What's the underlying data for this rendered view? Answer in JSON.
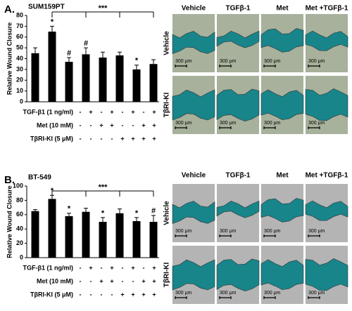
{
  "chart_data": [
    {
      "type": "bar",
      "panel": "A.",
      "title": "SUM159PT",
      "ylabel": "Relative Wound Closure",
      "ylim": [
        0,
        80
      ],
      "yticks": [
        0,
        10,
        20,
        30,
        40,
        50,
        60,
        70,
        80
      ],
      "color": "#000000",
      "values": [
        45,
        65,
        37,
        44,
        41,
        43,
        30,
        35
      ],
      "errors": [
        5,
        5,
        4,
        6,
        5,
        3,
        4,
        4
      ],
      "annotations": [
        null,
        "*",
        "#",
        "#",
        null,
        null,
        "*",
        null
      ],
      "bracket": "***",
      "conditions": [
        {
          "label": "TGF-β1 (1 ng/ml)",
          "signs": [
            "-",
            "+",
            "-",
            "+",
            "-",
            "+",
            "-",
            "+"
          ]
        },
        {
          "label": "Met (10 mM)",
          "signs": [
            "-",
            "-",
            "+",
            "+",
            "-",
            "-",
            "+",
            "+"
          ]
        },
        {
          "label": "TβRI-KI (5 μM)",
          "signs": [
            "-",
            "-",
            "-",
            "-",
            "+",
            "+",
            "+",
            "+"
          ]
        }
      ],
      "image_columns": [
        "Vehicle",
        "TGFβ-1",
        "Met",
        "Met +TGFβ-1"
      ],
      "image_rows": [
        "Vehicle",
        "TβRI-KI"
      ],
      "scale_bar": "300 μm"
    },
    {
      "type": "bar",
      "panel": "B.",
      "title": "BT-549",
      "ylabel": "Relative Wound Closure",
      "ylim": [
        0,
        100
      ],
      "yticks": [
        0,
        20,
        40,
        60,
        80,
        100
      ],
      "color": "#000000",
      "values": [
        65,
        82,
        58,
        64,
        50,
        62,
        51,
        50
      ],
      "errors": [
        2,
        5,
        4,
        5,
        6,
        6,
        5,
        9
      ],
      "annotations": [
        null,
        "*",
        "*",
        null,
        "*",
        null,
        "*",
        "#"
      ],
      "bracket": "***",
      "conditions": [
        {
          "label": "TGF-β1 (1 ng/ml)",
          "signs": [
            "-",
            "+",
            "-",
            "+",
            "-",
            "+",
            "-",
            "+"
          ]
        },
        {
          "label": "Met (10 mM)",
          "signs": [
            "-",
            "-",
            "+",
            "+",
            "-",
            "-",
            "+",
            "+"
          ]
        },
        {
          "label": "TβRI-KI (5 μM)",
          "signs": [
            "-",
            "-",
            "-",
            "-",
            "+",
            "+",
            "+",
            "+"
          ]
        }
      ],
      "image_columns": [
        "Vehicle",
        "TGFβ-1",
        "Met",
        "Met +TGFβ-1"
      ],
      "image_rows": [
        "Vehicle",
        "TβRI-KI"
      ],
      "scale_bar": "300 μm"
    }
  ]
}
